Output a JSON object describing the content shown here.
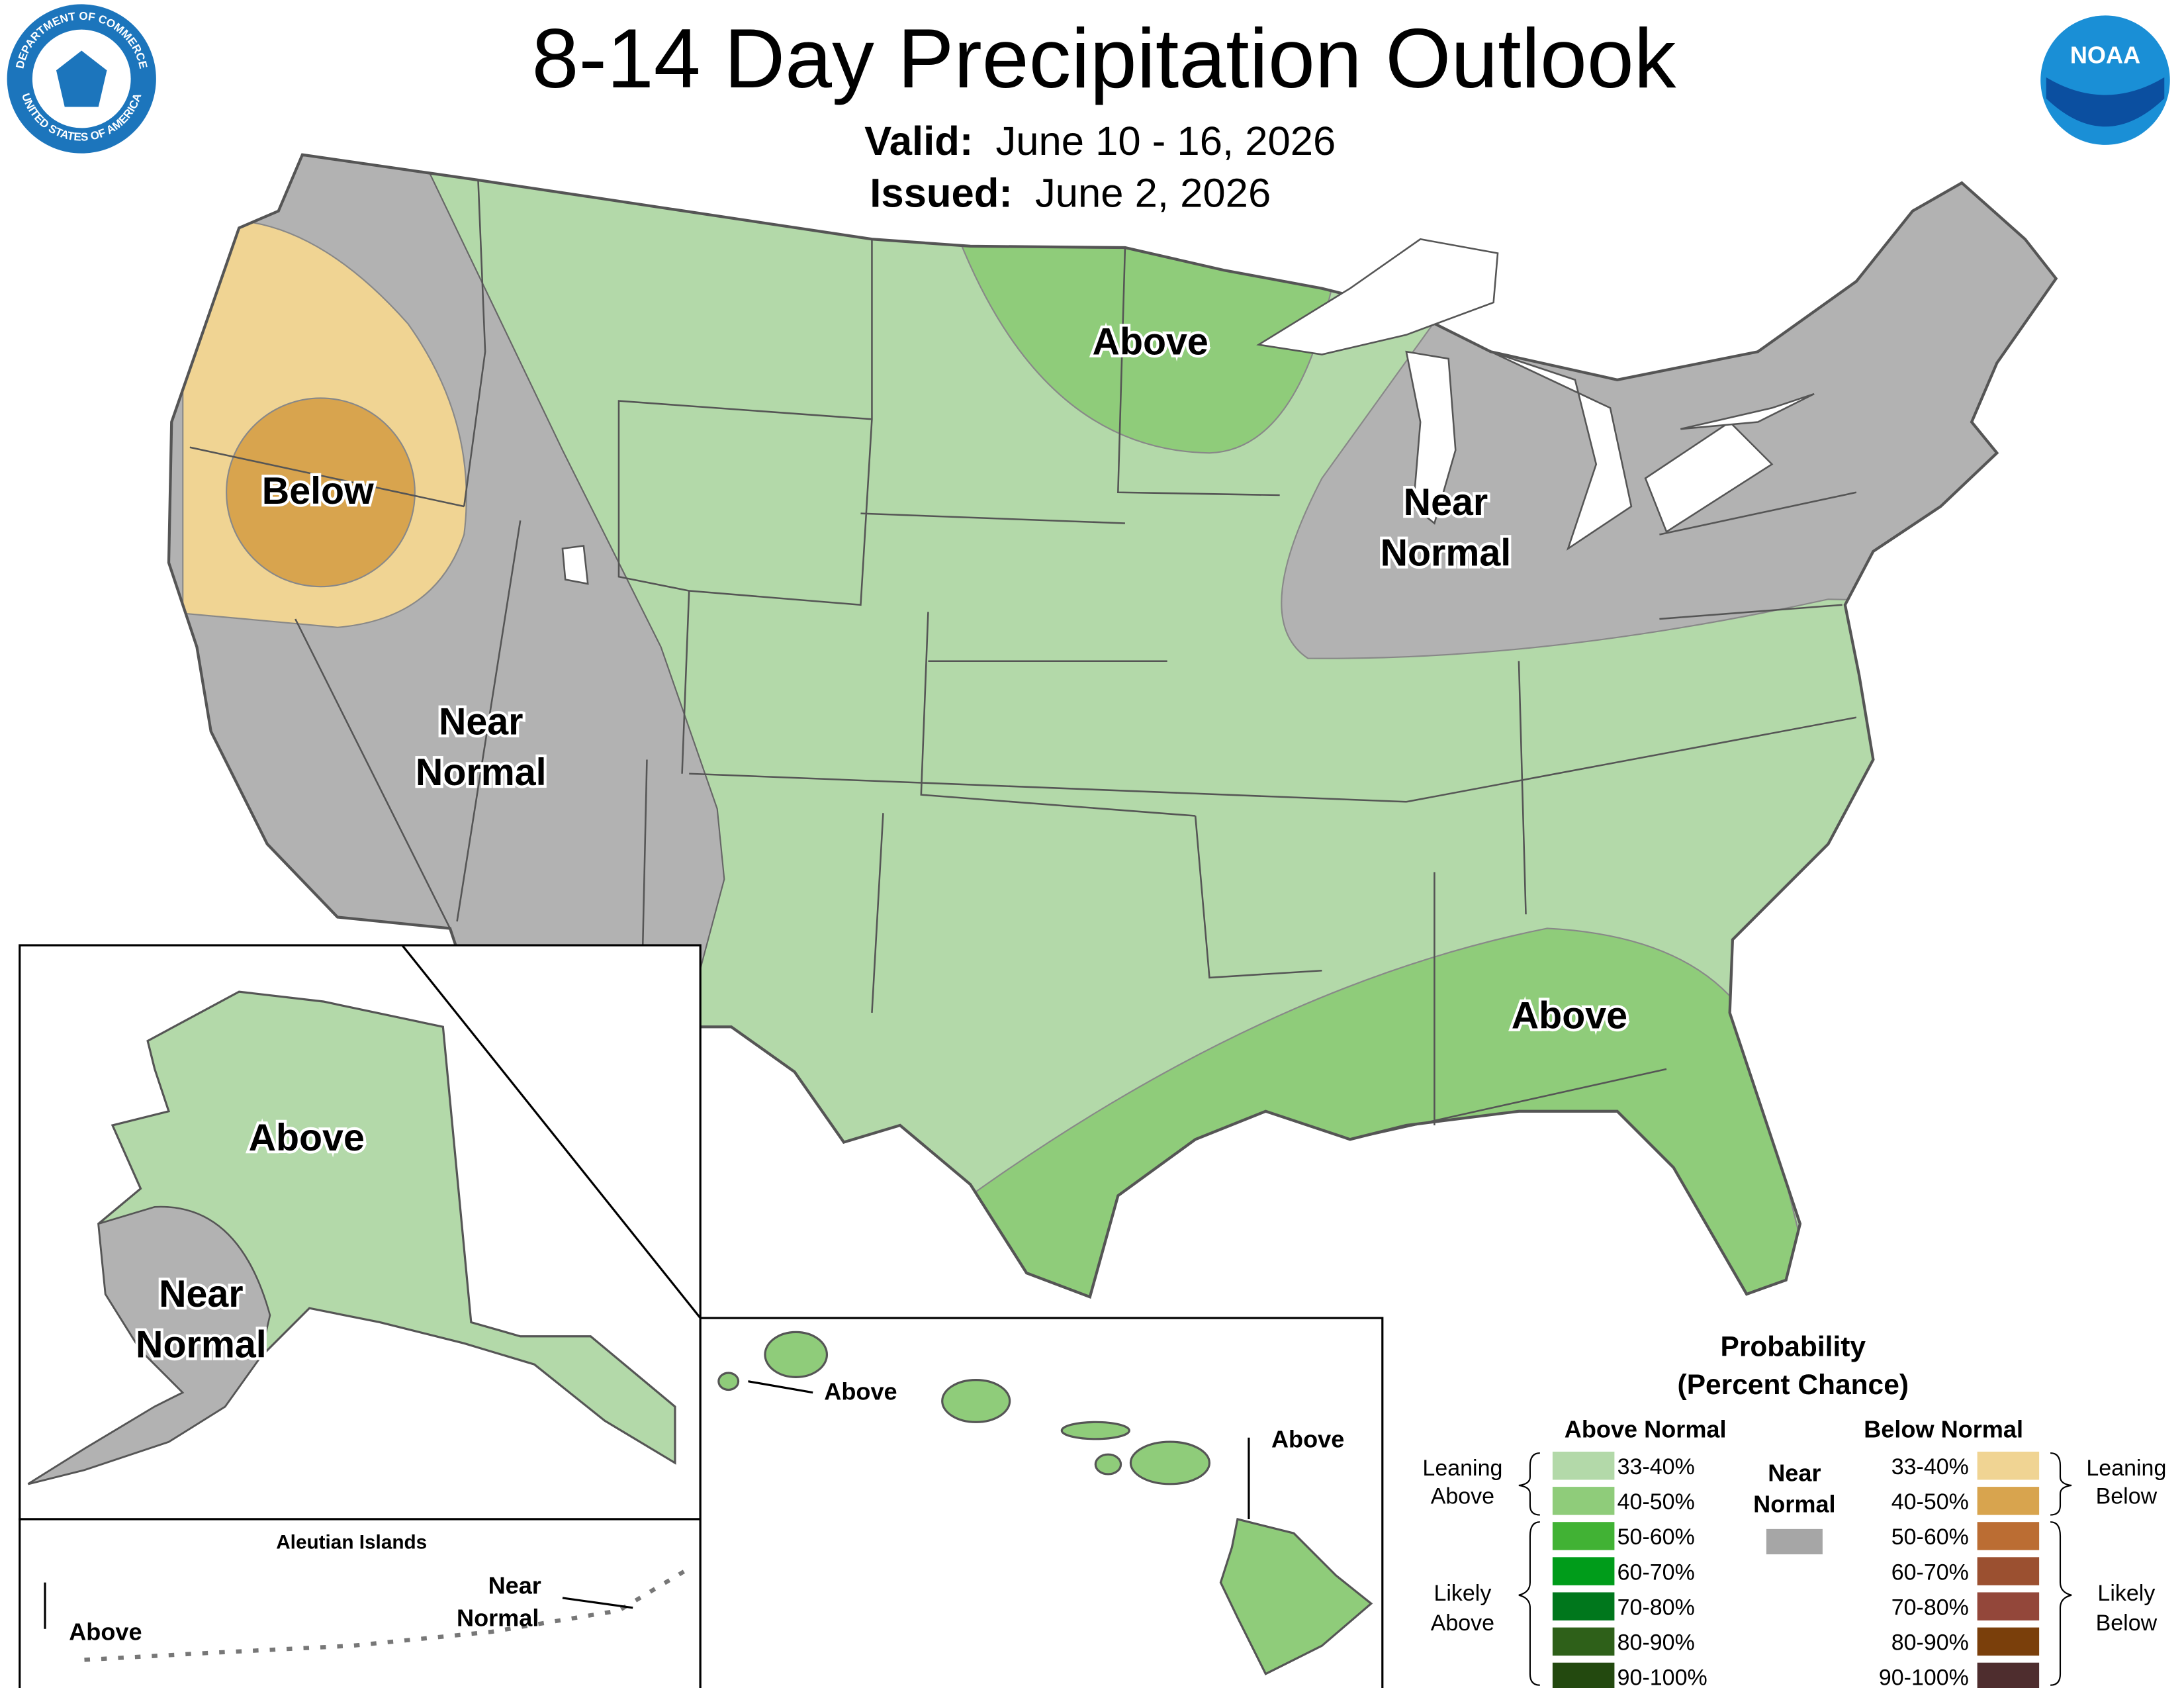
{
  "header": {
    "title": "8-14 Day Precipitation Outlook",
    "valid_label": "Valid:",
    "valid": "June 10 - 16, 2026",
    "issued_label": "Issued:",
    "issued": "June 2, 2026"
  },
  "logos": {
    "seal_top": "DEPARTMENT OF COMMERCE",
    "seal_bottom": "UNITED STATES OF AMERICA",
    "noaa": "NOAA"
  },
  "conus": {
    "labels": [
      {
        "lines": [
          "Above"
        ]
      },
      {
        "lines": [
          "Below"
        ]
      },
      {
        "lines": [
          "Near",
          "Normal"
        ]
      },
      {
        "lines": [
          "Near",
          "Normal"
        ]
      },
      {
        "lines": [
          "Above"
        ]
      }
    ]
  },
  "alaska": {
    "labels": [
      {
        "lines": [
          "Above"
        ]
      },
      {
        "lines": [
          "Near",
          "Normal"
        ]
      }
    ]
  },
  "aleutians": {
    "title": "Aleutian Islands",
    "labels": [
      {
        "lines": [
          "Above"
        ]
      },
      {
        "lines": [
          "Near",
          "Normal"
        ]
      }
    ]
  },
  "hawaii": {
    "labels": [
      {
        "lines": [
          "Above"
        ]
      },
      {
        "lines": [
          "Above"
        ]
      }
    ]
  },
  "legend": {
    "title_lines": [
      "Probability",
      "(Percent Chance)"
    ],
    "above_header": "Above Normal",
    "below_header": "Below Normal",
    "near_normal_lines": [
      "Near",
      "Normal"
    ],
    "near_normal_color": "#a6a6a6",
    "leaning_above_lines": [
      "Leaning",
      "Above"
    ],
    "likely_above_lines": [
      "Likely",
      "Above"
    ],
    "leaning_below_lines": [
      "Leaning",
      "Below"
    ],
    "likely_below_lines": [
      "Likely",
      "Below"
    ],
    "above": [
      {
        "range": "33-40%",
        "color": "#b3d9a9"
      },
      {
        "range": "40-50%",
        "color": "#8fcc7a"
      },
      {
        "range": "50-60%",
        "color": "#41b234"
      },
      {
        "range": "60-70%",
        "color": "#009c1a"
      },
      {
        "range": "70-80%",
        "color": "#00771c"
      },
      {
        "range": "80-90%",
        "color": "#2e6019"
      },
      {
        "range": "90-100%",
        "color": "#23490f"
      }
    ],
    "below": [
      {
        "range": "33-40%",
        "color": "#f0d493"
      },
      {
        "range": "40-50%",
        "color": "#d8a44e"
      },
      {
        "range": "50-60%",
        "color": "#bb6d33"
      },
      {
        "range": "60-70%",
        "color": "#9b5030"
      },
      {
        "range": "70-80%",
        "color": "#93473a"
      },
      {
        "range": "80-90%",
        "color": "#7a3f0b"
      },
      {
        "range": "90-100%",
        "color": "#4e2d2e"
      }
    ]
  }
}
